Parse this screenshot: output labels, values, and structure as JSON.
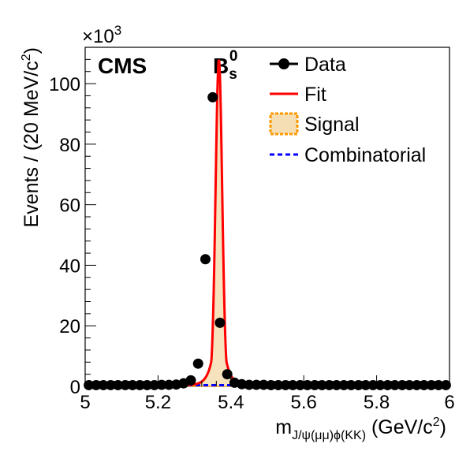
{
  "chart_data": {
    "type": "scatter",
    "experiment_label": "CMS",
    "particle_label": {
      "main": "B",
      "sub": "s",
      "sup": "0"
    },
    "axis_multiplier": {
      "base": "×10",
      "exp": "3"
    },
    "xlabel": {
      "main": "m",
      "sub": "J/ψ(μμ)ϕ(KK)",
      "unit_open": " (GeV/c",
      "unit_sup": "2",
      "unit_close": ")"
    },
    "ylabel": {
      "main": "Events / (20 MeV/c",
      "sup": "2",
      "close": ")"
    },
    "xlim": [
      5.0,
      6.0
    ],
    "ylim": [
      0,
      112
    ],
    "x_ticks": [
      5.0,
      5.2,
      5.4,
      5.6,
      5.8,
      6.0
    ],
    "x_tick_labels": [
      "5",
      "5.2",
      "5.4",
      "5.6",
      "5.8",
      "6"
    ],
    "y_ticks": [
      0,
      20,
      40,
      60,
      80,
      100
    ],
    "y_tick_labels": [
      "0",
      "20",
      "40",
      "60",
      "80",
      "100"
    ],
    "legend_position": "top-right",
    "legend": [
      "Data",
      "Fit",
      "Signal",
      "Combinatorial"
    ],
    "colors": {
      "data": "#000000",
      "fit": "#ff0000",
      "signal_fill": "#f5deb3",
      "signal_edge": "#ff9900",
      "combinatorial": "#0000ff"
    },
    "series": [
      {
        "name": "Data",
        "x": [
          5.01,
          5.03,
          5.05,
          5.07,
          5.09,
          5.11,
          5.13,
          5.15,
          5.17,
          5.19,
          5.21,
          5.23,
          5.25,
          5.27,
          5.29,
          5.31,
          5.33,
          5.35,
          5.37,
          5.39,
          5.41,
          5.43,
          5.45,
          5.47,
          5.49,
          5.51,
          5.53,
          5.55,
          5.57,
          5.59,
          5.61,
          5.63,
          5.65,
          5.67,
          5.69,
          5.71,
          5.73,
          5.75,
          5.77,
          5.79,
          5.81,
          5.83,
          5.85,
          5.87,
          5.89,
          5.91,
          5.93,
          5.95,
          5.97,
          5.99
        ],
        "y": [
          0.4,
          0.4,
          0.4,
          0.4,
          0.4,
          0.4,
          0.4,
          0.4,
          0.4,
          0.4,
          0.5,
          0.5,
          0.6,
          1.0,
          2.0,
          7.5,
          42.0,
          95.5,
          21.0,
          4.0,
          1.2,
          0.7,
          0.5,
          0.5,
          0.5,
          0.4,
          0.4,
          0.4,
          0.4,
          0.4,
          0.4,
          0.4,
          0.4,
          0.4,
          0.4,
          0.4,
          0.4,
          0.4,
          0.4,
          0.4,
          0.4,
          0.4,
          0.4,
          0.4,
          0.4,
          0.4,
          0.4,
          0.4,
          0.4,
          0.4
        ]
      },
      {
        "name": "Fit",
        "type": "line",
        "peak_mass": 5.367,
        "peak_height": 107.5,
        "width": 0.009,
        "tail_width": 0.014,
        "baseline": 0.4
      },
      {
        "name": "Signal",
        "type": "area",
        "peak_mass": 5.367,
        "peak_height": 107.1,
        "width": 0.009,
        "tail_width": 0.014
      },
      {
        "name": "Combinatorial",
        "type": "line",
        "level": 0.4
      }
    ]
  }
}
